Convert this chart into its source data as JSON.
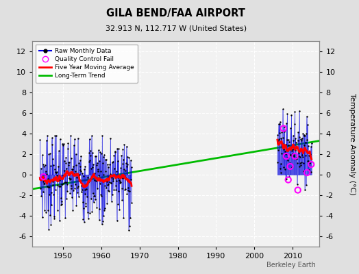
{
  "title": "GILA BEND/FAA AIRPORT",
  "subtitle": "32.913 N, 112.717 W (United States)",
  "ylabel_right": "Temperature Anomaly (°C)",
  "attribution": "Berkeley Earth",
  "ylim": [
    -7,
    13
  ],
  "yticks": [
    -6,
    -4,
    -2,
    0,
    2,
    4,
    6,
    8,
    10,
    12
  ],
  "xlim": [
    1942,
    2017
  ],
  "xticks": [
    1950,
    1960,
    1970,
    1980,
    1990,
    2000,
    2010
  ],
  "bg_color": "#e0e0e0",
  "plot_bg_color": "#f2f2f2",
  "raw_color": "#0000dd",
  "dot_color": "#000000",
  "moving_avg_color": "#ff0000",
  "trend_color": "#00bb00",
  "qc_color": "#ff00ff",
  "grid_color": "#ffffff",
  "trend_x": [
    1942,
    2017
  ],
  "trend_y": [
    -1.4,
    3.3
  ],
  "period1_seed": 7,
  "period1_start_year": 1944,
  "period1_end_year": 1967,
  "period1_base": -0.3,
  "period1_amplitude": 2.2,
  "period2_seed": 13,
  "period2_start_year": 2006,
  "period2_end_year": 2014,
  "period2_base": 2.5,
  "period2_amplitude": 1.8,
  "qc_fail_p1_years": [
    1944.917
  ],
  "qc_fail_p1_vals": [
    -0.2
  ],
  "qc_fail_p2_years": [
    2007.583,
    2008.333,
    2008.833,
    2009.333,
    2010.583,
    2011.333,
    2013.75,
    2014.833
  ],
  "qc_fail_p2_vals": [
    4.5,
    1.8,
    -0.5,
    0.8,
    1.8,
    -1.5,
    0.2,
    1.0
  ]
}
